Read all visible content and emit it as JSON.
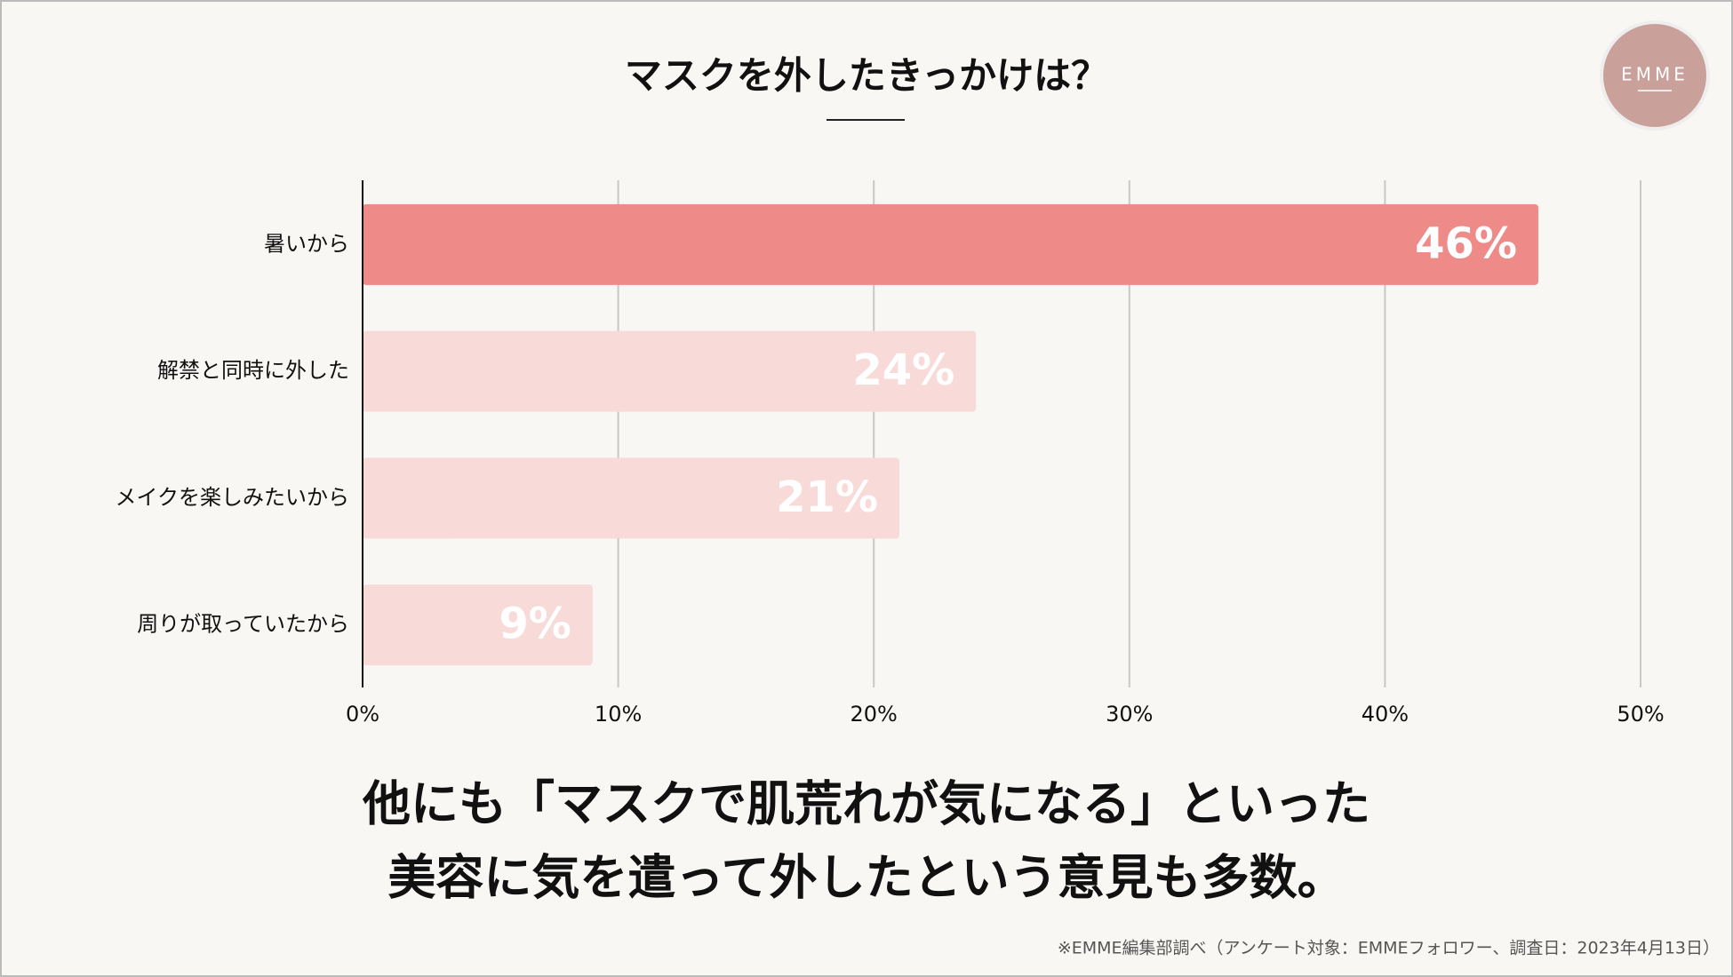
{
  "chart_data": {
    "type": "bar",
    "orientation": "horizontal",
    "title": "マスクを外したきっかけは？",
    "logo": "EMME",
    "categories": [
      "暑いから",
      "解禁と同時に外した",
      "メイクを楽しみたいから",
      "周りが取っていたから"
    ],
    "values": [
      46,
      24,
      21,
      9
    ],
    "value_labels": [
      "46%",
      "24%",
      "21%",
      "9%"
    ],
    "colors": [
      "#ee8b88",
      "#f8dbd9",
      "#f8dbd9",
      "#f8dbd9"
    ],
    "xlim": [
      0,
      50
    ],
    "xticks": [
      {
        "value": 0,
        "label": "0%"
      },
      {
        "value": 10,
        "label": "10%"
      },
      {
        "value": 20,
        "label": "20%"
      },
      {
        "value": 30,
        "label": "30%"
      },
      {
        "value": 40,
        "label": "40%"
      },
      {
        "value": 50,
        "label": "50%"
      }
    ],
    "grid": true,
    "annotations": [
      "他にも「マスクで肌荒れが気になる」といった",
      "美容に気を遣って外したという意見も多数。"
    ],
    "source": "※EMME編集部調べ（アンケート対象：EMMEフォロワー、調査日：2023年4月13日）"
  }
}
